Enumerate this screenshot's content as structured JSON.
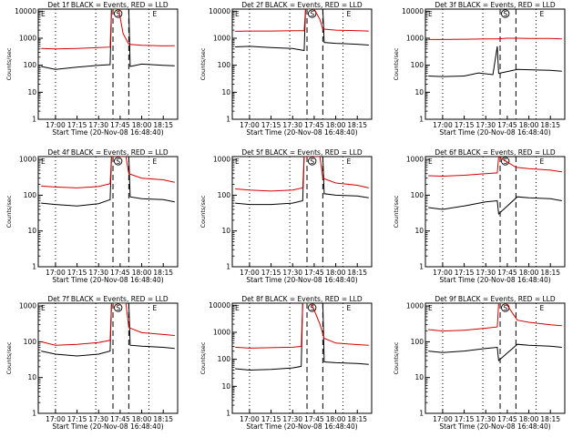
{
  "figure": {
    "ylabel": "Counts/sec",
    "xlabel": "Start Time (20-Nov-08 16:48:40)",
    "x_ticks": [
      "17:00",
      "17:15",
      "17:30",
      "17:45",
      "18:00",
      "18:15"
    ],
    "y_ticks": [
      "1",
      "10",
      "100",
      "1000",
      "10000"
    ],
    "region_labels": [
      "E",
      "S",
      "E"
    ],
    "colors": {
      "events": "#000000",
      "lld": "#d40000"
    }
  },
  "chart_data": [
    {
      "type": "line",
      "title": "Det 1f BLACK = Events, RED = LLD",
      "xlabel": "Start Time (20-Nov-08 16:48:40)",
      "ylabel": "Counts/sec",
      "log_y": true,
      "ylim": [
        1,
        12000
      ],
      "xlim": [
        "16:48",
        "18:25"
      ],
      "markers": {
        "dashed": [
          "17:40",
          "17:51"
        ],
        "dotted": [
          "17:00",
          "17:28",
          "18:05"
        ]
      },
      "series": [
        {
          "name": "Events",
          "color": "#000000",
          "x": [
            "16:50",
            "17:00",
            "17:15",
            "17:30",
            "17:38",
            "17:39",
            "17:44",
            "17:51",
            "17:52",
            "18:00",
            "18:15",
            "18:23"
          ],
          "y": [
            90,
            70,
            85,
            100,
            105,
            12000,
            12000,
            12000,
            90,
            110,
            100,
            95
          ]
        },
        {
          "name": "LLD",
          "color": "#d40000",
          "x": [
            "16:50",
            "17:00",
            "17:15",
            "17:30",
            "17:38",
            "17:39",
            "17:44",
            "17:47",
            "17:51",
            "18:00",
            "18:15",
            "18:23"
          ],
          "y": [
            420,
            400,
            420,
            450,
            470,
            12000,
            12000,
            1500,
            600,
            550,
            520,
            530
          ]
        }
      ]
    },
    {
      "type": "line",
      "title": "Det 2f BLACK = Events, RED = LLD",
      "xlabel": "Start Time (20-Nov-08 16:48:40)",
      "ylabel": "Counts/sec",
      "log_y": true,
      "ylim": [
        1,
        12000
      ],
      "xlim": [
        "16:48",
        "18:25"
      ],
      "markers": {
        "dashed": [
          "17:40",
          "17:51"
        ],
        "dotted": [
          "17:00",
          "17:28",
          "18:05"
        ]
      },
      "series": [
        {
          "name": "Events",
          "color": "#000000",
          "x": [
            "16:50",
            "17:00",
            "17:15",
            "17:30",
            "17:38",
            "17:39",
            "17:47",
            "17:51",
            "17:52",
            "18:00",
            "18:15",
            "18:23"
          ],
          "y": [
            480,
            500,
            450,
            420,
            350,
            12000,
            12000,
            12000,
            700,
            650,
            600,
            560
          ]
        },
        {
          "name": "LLD",
          "color": "#d40000",
          "x": [
            "16:50",
            "17:00",
            "17:15",
            "17:30",
            "17:38",
            "17:39",
            "17:45",
            "17:49",
            "17:51",
            "18:00",
            "18:15",
            "18:23"
          ],
          "y": [
            1800,
            1850,
            1850,
            1900,
            1900,
            12000,
            12000,
            5000,
            2200,
            2000,
            1900,
            1850
          ]
        }
      ]
    },
    {
      "type": "line",
      "title": "Det 3f BLACK = Events, RED = LLD",
      "xlabel": "Start Time (20-Nov-08 16:48:40)",
      "ylabel": "Counts/sec",
      "log_y": true,
      "ylim": [
        1,
        12000
      ],
      "xlim": [
        "16:48",
        "18:25"
      ],
      "markers": {
        "dashed": [
          "17:40",
          "17:51"
        ],
        "dotted": [
          "17:00",
          "17:28",
          "18:05"
        ]
      },
      "series": [
        {
          "name": "Events",
          "color": "#000000",
          "x": [
            "16:50",
            "17:00",
            "17:15",
            "17:25",
            "17:35",
            "17:38",
            "17:39",
            "17:52",
            "18:00",
            "18:15",
            "18:23"
          ],
          "y": [
            40,
            38,
            40,
            52,
            45,
            500,
            50,
            70,
            68,
            65,
            60
          ]
        },
        {
          "name": "LLD",
          "color": "#d40000",
          "x": [
            "16:50",
            "17:00",
            "17:15",
            "17:30",
            "17:38",
            "17:45",
            "17:51",
            "18:00",
            "18:15",
            "18:23"
          ],
          "y": [
            900,
            900,
            920,
            950,
            950,
            1000,
            1000,
            980,
            980,
            950
          ]
        }
      ]
    },
    {
      "type": "line",
      "title": "Det 4f BLACK = Events, RED = LLD",
      "xlabel": "Start Time (20-Nov-08 16:48:40)",
      "ylabel": "Counts/sec",
      "log_y": true,
      "ylim": [
        1,
        1200
      ],
      "xlim": [
        "16:48",
        "18:25"
      ],
      "markers": {
        "dashed": [
          "17:40",
          "17:51"
        ],
        "dotted": [
          "17:00",
          "17:28",
          "18:05"
        ]
      },
      "series": [
        {
          "name": "Events",
          "color": "#000000",
          "x": [
            "16:50",
            "17:00",
            "17:15",
            "17:30",
            "17:38",
            "17:39",
            "17:51",
            "17:52",
            "18:00",
            "18:15",
            "18:23"
          ],
          "y": [
            60,
            55,
            50,
            58,
            75,
            1200,
            1200,
            90,
            80,
            75,
            65
          ]
        },
        {
          "name": "LLD",
          "color": "#d40000",
          "x": [
            "16:50",
            "17:00",
            "17:15",
            "17:30",
            "17:38",
            "17:39",
            "17:49",
            "17:51",
            "18:00",
            "18:15",
            "18:23"
          ],
          "y": [
            180,
            170,
            160,
            175,
            210,
            1200,
            1200,
            400,
            300,
            270,
            230
          ]
        }
      ]
    },
    {
      "type": "line",
      "title": "Det 5f BLACK = Events, RED = LLD",
      "xlabel": "Start Time (20-Nov-08 16:48:40)",
      "ylabel": "Counts/sec",
      "log_y": true,
      "ylim": [
        1,
        1200
      ],
      "xlim": [
        "16:48",
        "18:25"
      ],
      "markers": {
        "dashed": [
          "17:40",
          "17:51"
        ],
        "dotted": [
          "17:00",
          "17:28",
          "18:05"
        ]
      },
      "series": [
        {
          "name": "Events",
          "color": "#000000",
          "x": [
            "16:50",
            "17:00",
            "17:15",
            "17:30",
            "17:37",
            "17:38",
            "17:51",
            "17:52",
            "18:00",
            "18:15",
            "18:23"
          ],
          "y": [
            60,
            55,
            55,
            60,
            70,
            1200,
            1200,
            110,
            100,
            95,
            85
          ]
        },
        {
          "name": "LLD",
          "color": "#d40000",
          "x": [
            "16:50",
            "17:00",
            "17:15",
            "17:30",
            "17:37",
            "17:38",
            "17:49",
            "17:51",
            "18:00",
            "18:15",
            "18:23"
          ],
          "y": [
            150,
            140,
            130,
            140,
            160,
            1200,
            1200,
            300,
            220,
            190,
            160
          ]
        }
      ]
    },
    {
      "type": "line",
      "title": "Det 6f BLACK = Events, RED = LLD",
      "xlabel": "Start Time (20-Nov-08 16:48:40)",
      "ylabel": "Counts/sec",
      "log_y": true,
      "ylim": [
        1,
        1200
      ],
      "xlim": [
        "16:48",
        "18:25"
      ],
      "markers": {
        "dashed": [
          "17:40",
          "17:51"
        ],
        "dotted": [
          "17:00",
          "17:28",
          "18:05"
        ]
      },
      "series": [
        {
          "name": "Events",
          "color": "#000000",
          "x": [
            "16:50",
            "17:00",
            "17:15",
            "17:30",
            "17:38",
            "17:39",
            "17:52",
            "18:00",
            "18:15",
            "18:23"
          ],
          "y": [
            45,
            40,
            50,
            65,
            70,
            30,
            90,
            85,
            80,
            70
          ]
        },
        {
          "name": "LLD",
          "color": "#d40000",
          "x": [
            "16:50",
            "17:00",
            "17:15",
            "17:30",
            "17:38",
            "17:39",
            "17:51",
            "18:00",
            "18:15",
            "18:23"
          ],
          "y": [
            350,
            340,
            360,
            400,
            420,
            1200,
            600,
            550,
            500,
            450
          ]
        }
      ]
    },
    {
      "type": "line",
      "title": "Det 7f BLACK = Events, RED = LLD",
      "xlabel": "Start Time (20-Nov-08 16:48:40)",
      "ylabel": "Counts/sec",
      "log_y": true,
      "ylim": [
        1,
        1200
      ],
      "xlim": [
        "16:48",
        "18:25"
      ],
      "markers": {
        "dashed": [
          "17:40",
          "17:51"
        ],
        "dotted": [
          "17:00",
          "17:28",
          "18:05"
        ]
      },
      "series": [
        {
          "name": "Events",
          "color": "#000000",
          "x": [
            "16:50",
            "17:00",
            "17:15",
            "17:30",
            "17:38",
            "17:39",
            "17:51",
            "17:52",
            "18:00",
            "18:15",
            "18:23"
          ],
          "y": [
            55,
            45,
            40,
            45,
            55,
            1200,
            1200,
            80,
            75,
            70,
            65
          ]
        },
        {
          "name": "LLD",
          "color": "#d40000",
          "x": [
            "16:50",
            "17:00",
            "17:15",
            "17:30",
            "17:38",
            "17:39",
            "17:49",
            "17:51",
            "18:00",
            "18:15",
            "18:23"
          ],
          "y": [
            100,
            80,
            85,
            95,
            110,
            1200,
            1200,
            250,
            180,
            160,
            150
          ]
        }
      ]
    },
    {
      "type": "line",
      "title": "Det 8f BLACK = Events, RED = LLD",
      "xlabel": "Start Time (20-Nov-08 16:48:40)",
      "ylabel": "Counts/sec",
      "log_y": true,
      "ylim": [
        1,
        12000
      ],
      "xlim": [
        "16:48",
        "18:25"
      ],
      "markers": {
        "dashed": [
          "17:40",
          "17:51"
        ],
        "dotted": [
          "17:00",
          "17:28",
          "18:05"
        ]
      },
      "series": [
        {
          "name": "Events",
          "color": "#000000",
          "x": [
            "16:50",
            "17:00",
            "17:15",
            "17:30",
            "17:36",
            "17:37",
            "17:51",
            "17:52",
            "18:00",
            "18:15",
            "18:23"
          ],
          "y": [
            45,
            40,
            42,
            48,
            55,
            12000,
            12000,
            80,
            75,
            70,
            65
          ]
        },
        {
          "name": "LLD",
          "color": "#d40000",
          "x": [
            "16:50",
            "17:00",
            "17:15",
            "17:30",
            "17:36",
            "17:37",
            "17:43",
            "17:49",
            "17:52",
            "18:00",
            "18:15",
            "18:23"
          ],
          "y": [
            280,
            260,
            270,
            280,
            300,
            12000,
            12000,
            2000,
            600,
            400,
            350,
            330
          ]
        }
      ]
    },
    {
      "type": "line",
      "title": "Det 9f BLACK = Events, RED = LLD",
      "xlabel": "Start Time (20-Nov-08 16:48:40)",
      "ylabel": "Counts/sec",
      "log_y": true,
      "ylim": [
        1,
        1200
      ],
      "xlim": [
        "16:48",
        "18:25"
      ],
      "markers": {
        "dashed": [
          "17:40",
          "17:51"
        ],
        "dotted": [
          "17:00",
          "17:28",
          "18:05"
        ]
      },
      "series": [
        {
          "name": "Events",
          "color": "#000000",
          "x": [
            "16:50",
            "17:00",
            "17:15",
            "17:30",
            "17:38",
            "17:39",
            "17:52",
            "18:00",
            "18:15",
            "18:23"
          ],
          "y": [
            55,
            50,
            55,
            65,
            70,
            30,
            85,
            80,
            75,
            70
          ]
        },
        {
          "name": "LLD",
          "color": "#d40000",
          "x": [
            "16:50",
            "17:00",
            "17:15",
            "17:30",
            "17:38",
            "17:39",
            "17:44",
            "17:49",
            "17:52",
            "18:00",
            "18:15",
            "18:23"
          ],
          "y": [
            220,
            200,
            210,
            240,
            260,
            1200,
            1200,
            600,
            400,
            350,
            300,
            280
          ]
        }
      ]
    }
  ]
}
